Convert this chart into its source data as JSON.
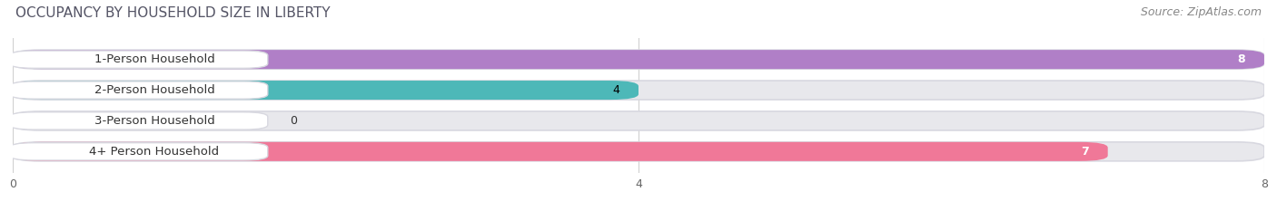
{
  "title": "OCCUPANCY BY HOUSEHOLD SIZE IN LIBERTY",
  "source": "Source: ZipAtlas.com",
  "categories": [
    "1-Person Household",
    "2-Person Household",
    "3-Person Household",
    "4+ Person Household"
  ],
  "values": [
    8,
    4,
    0,
    7
  ],
  "bar_colors": [
    "#b07fc7",
    "#4db8b8",
    "#a8b4e8",
    "#f07898"
  ],
  "bar_bg_color": "#e8e8ec",
  "xlim": [
    0,
    8
  ],
  "xticks": [
    0,
    4,
    8
  ],
  "title_fontsize": 11,
  "source_fontsize": 9,
  "label_fontsize": 9.5,
  "value_fontsize": 9,
  "bar_height": 0.62,
  "background_color": "#ffffff",
  "value_colors": [
    "white",
    "black",
    "black",
    "white"
  ]
}
